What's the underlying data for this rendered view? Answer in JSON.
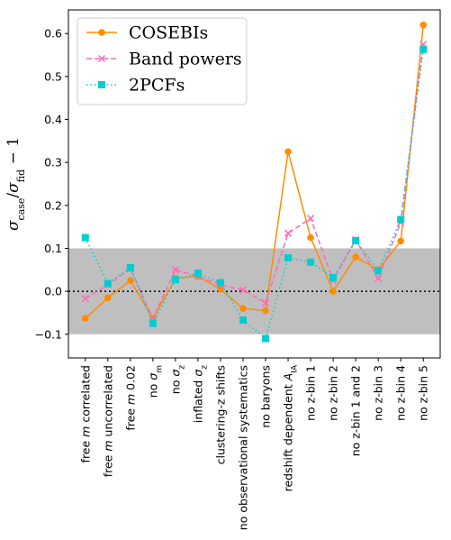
{
  "chart_data": {
    "type": "line",
    "categories": [
      "free m correlated",
      "free m uncorrelated",
      "free m 0.02",
      "no σ_m",
      "no σ_z",
      "inflated σ_z",
      "clustering-z shifts",
      "no observational systematics",
      "no baryons",
      "redshift dependent A_IA",
      "no z-bin 1",
      "no z-bin 2",
      "no z-bin 1 and 2",
      "no z-bin 3",
      "no z-bin 4",
      "no z-bin 5"
    ],
    "category_labels": [
      {
        "pre": "free ",
        "ital": "m",
        "post": " correlated"
      },
      {
        "pre": "free ",
        "ital": "m",
        "post": " uncorrelated"
      },
      {
        "pre": "free ",
        "ital": "m",
        "post": " 0.02"
      },
      {
        "pre": "no ",
        "ital": "σ",
        "sub": "m",
        "post": ""
      },
      {
        "pre": "no ",
        "ital": "σ",
        "sub": "z",
        "post": ""
      },
      {
        "pre": "inflated ",
        "ital": "σ",
        "sub": "z",
        "post": ""
      },
      {
        "pre": "clustering-z shifts"
      },
      {
        "pre": "no observational systematics"
      },
      {
        "pre": "no baryons"
      },
      {
        "pre": "redshift dependent ",
        "ital": "A",
        "sub": "IA",
        "post": ""
      },
      {
        "pre": "no z-bin 1"
      },
      {
        "pre": "no z-bin 2"
      },
      {
        "pre": "no z-bin 1 and 2"
      },
      {
        "pre": "no z-bin 3"
      },
      {
        "pre": "no z-bin 4"
      },
      {
        "pre": "no z-bin 5"
      }
    ],
    "series": [
      {
        "name": "COSEBIs",
        "color": "#ff8c00",
        "marker": "circle",
        "linestyle": "solid",
        "values": [
          -0.063,
          -0.015,
          0.025,
          -0.063,
          0.03,
          0.035,
          0.005,
          -0.04,
          -0.045,
          0.325,
          0.125,
          0.0,
          0.08,
          0.05,
          0.117,
          0.62
        ]
      },
      {
        "name": "Band powers",
        "color": "#ff69b4",
        "marker": "x",
        "linestyle": "dashed",
        "values": [
          -0.017,
          0.015,
          0.052,
          -0.063,
          0.05,
          0.035,
          0.015,
          0.003,
          -0.027,
          0.135,
          0.17,
          0.025,
          0.12,
          0.03,
          0.16,
          0.575
        ]
      },
      {
        "name": "2PCFs",
        "color": "#00ced1",
        "marker": "square",
        "linestyle": "dotted",
        "values": [
          0.125,
          0.018,
          0.055,
          -0.075,
          0.027,
          0.042,
          0.02,
          -0.067,
          -0.11,
          0.078,
          0.068,
          0.032,
          0.118,
          0.048,
          0.167,
          0.563
        ]
      }
    ],
    "ylabel": "σ_case/σ_fid − 1",
    "ylabel_parts": {
      "s1": "σ",
      "sub1": "case",
      "slash": "/",
      "s2": "σ",
      "sub2": "fid",
      "tail": " − 1"
    },
    "ylim": [
      -0.155,
      0.655
    ],
    "yticks": [
      -0.1,
      0.0,
      0.1,
      0.2,
      0.3,
      0.4,
      0.5,
      0.6
    ],
    "ytick_labels": [
      "−0.1",
      "0.0",
      "0.1",
      "0.2",
      "0.3",
      "0.4",
      "0.5",
      "0.6"
    ],
    "shaded_band": [
      -0.1,
      0.1
    ],
    "shaded_color": "#bfbfbf",
    "reference_line": 0.0,
    "legend_position": "top-left",
    "grid": false
  }
}
